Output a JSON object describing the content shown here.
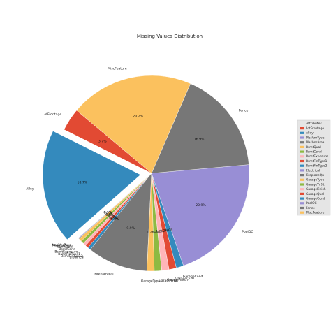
{
  "chart_data": {
    "type": "pie",
    "title": "Missing Values Distribution",
    "legend": {
      "title": "Attributes",
      "placement": "right"
    },
    "slices": [
      {
        "label": "LotFrontage",
        "value": 3.7,
        "pct_label": "3.7%",
        "color": "#e24a33",
        "explode": false
      },
      {
        "label": "Alley",
        "value": 18.7,
        "pct_label": "18.7%",
        "color": "#348abd",
        "explode": true
      },
      {
        "label": "MasVnrType",
        "value": 0.1,
        "pct_label": "0.1%",
        "color": "#988ed5",
        "explode": false
      },
      {
        "label": "MasVnrArea",
        "value": 0.1,
        "pct_label": "0.1%",
        "color": "#777777",
        "explode": false
      },
      {
        "label": "BsmtQual",
        "value": 0.5,
        "pct_label": "0.5%",
        "color": "#fbc15e",
        "explode": false
      },
      {
        "label": "BsmtCond",
        "value": 0.5,
        "pct_label": "0.5%",
        "color": "#8eba42",
        "explode": false
      },
      {
        "label": "BsmtExposure",
        "value": 0.5,
        "pct_label": "0.5%",
        "color": "#ffb5b8",
        "explode": false
      },
      {
        "label": "BsmtFinType1",
        "value": 0.5,
        "pct_label": "0.5%",
        "color": "#e24a33",
        "explode": false
      },
      {
        "label": "BsmtFinType2",
        "value": 0.5,
        "pct_label": "0.5%",
        "color": "#348abd",
        "explode": false
      },
      {
        "label": "Electrical",
        "value": 0.0,
        "pct_label": "0.0%",
        "color": "#988ed5",
        "explode": false
      },
      {
        "label": "FireplaceQu",
        "value": 9.9,
        "pct_label": "9.9%",
        "color": "#777777",
        "explode": false
      },
      {
        "label": "GarageType",
        "value": 1.2,
        "pct_label": "1.2%",
        "color": "#fbc15e",
        "explode": false
      },
      {
        "label": "GarageYrBlt",
        "value": 1.2,
        "pct_label": "1.2%",
        "color": "#8eba42",
        "explode": false
      },
      {
        "label": "GarageFinish",
        "value": 1.2,
        "pct_label": "1.2%",
        "color": "#ffb5b8",
        "explode": false
      },
      {
        "label": "GarageQual",
        "value": 1.2,
        "pct_label": "1.2%",
        "color": "#e24a33",
        "explode": false
      },
      {
        "label": "GarageCond",
        "value": 1.2,
        "pct_label": "1.2%",
        "color": "#348abd",
        "explode": false
      },
      {
        "label": "PoolQC",
        "value": 20.9,
        "pct_label": "20.9%",
        "color": "#988ed5",
        "explode": false
      },
      {
        "label": "Fence",
        "value": 16.9,
        "pct_label": "16.9%",
        "color": "#777777",
        "explode": false
      },
      {
        "label": "MiscFeature",
        "value": 20.2,
        "pct_label": "20.2%",
        "color": "#fbc15e",
        "explode": false
      }
    ]
  }
}
